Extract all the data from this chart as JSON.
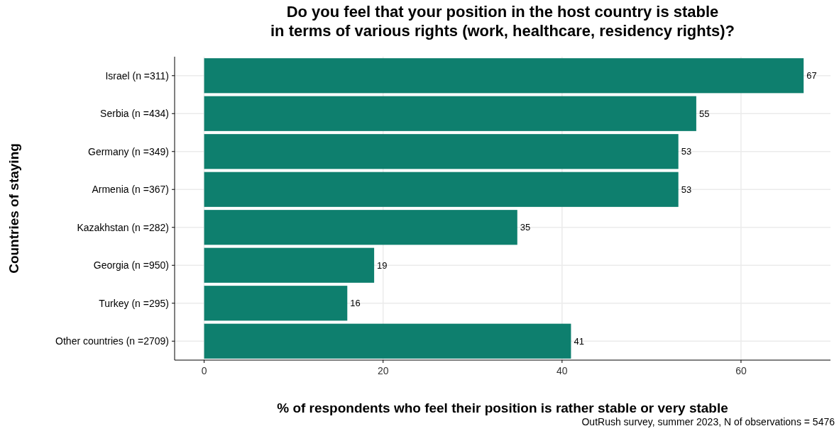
{
  "chart_data": {
    "type": "bar",
    "orientation": "horizontal",
    "title": "Do you feel that your position in the host country is stable\nin terms of various rights (work, healthcare, residency rights)?",
    "xlabel": "% of respondents who feel their position is rather stable or very stable",
    "ylabel": "Countries of staying",
    "categories": [
      "Israel (n =311)",
      "Serbia (n =434)",
      "Germany (n =349)",
      "Armenia (n =367)",
      "Kazakhstan (n =282)",
      "Georgia (n =950)",
      "Turkey (n =295)",
      "Other countries (n =2709)"
    ],
    "values": [
      67,
      55,
      53,
      53,
      35,
      19,
      16,
      41
    ],
    "color": "#0e7f6e",
    "data_labels": true,
    "xlim": [
      -3.3,
      70
    ],
    "xticks": [
      0,
      20,
      40,
      60
    ],
    "grid": true,
    "annotations": [
      "OutRush survey, summer 2023, N of observations =  5476"
    ]
  }
}
